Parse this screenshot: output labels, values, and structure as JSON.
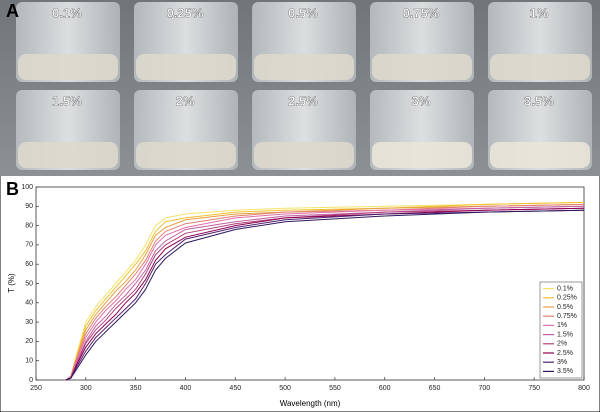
{
  "panel_a": {
    "label": "A",
    "samples": [
      "0.1%",
      "0.25%",
      "0.5%",
      "0.75%",
      "1%",
      "1.5%",
      "2%",
      "2.5%",
      "3%",
      "3.5%"
    ]
  },
  "chart_data": {
    "type": "line",
    "panel_label": "B",
    "xlabel": "Wavelength (nm)",
    "ylabel": "T (%)",
    "x": [
      280,
      285,
      290,
      300,
      310,
      320,
      330,
      340,
      350,
      360,
      370,
      380,
      400,
      450,
      500,
      600,
      700,
      800
    ],
    "xlim": [
      250,
      800
    ],
    "xticks": [
      250,
      300,
      350,
      400,
      450,
      500,
      550,
      600,
      650,
      700,
      750,
      800
    ],
    "ylim": [
      0,
      100
    ],
    "yticks": [
      0,
      10,
      20,
      30,
      40,
      50,
      60,
      70,
      80,
      90,
      100
    ],
    "grid": false,
    "legend": "lower right",
    "series": [
      {
        "name": "0.1%",
        "color": "#f3e36a",
        "values": [
          0,
          2,
          12,
          30,
          38,
          44,
          50,
          56,
          62,
          70,
          80,
          84,
          86,
          88,
          89,
          90,
          91,
          92
        ]
      },
      {
        "name": "0.25%",
        "color": "#f0c030",
        "values": [
          0,
          2,
          11,
          28,
          36,
          42,
          48,
          54,
          60,
          67,
          77,
          82,
          84,
          87,
          88,
          89,
          91,
          92
        ]
      },
      {
        "name": "0.5%",
        "color": "#e8a040",
        "values": [
          0,
          2,
          10,
          26,
          34,
          40,
          46,
          51,
          57,
          65,
          75,
          79,
          83,
          86,
          87,
          89,
          90,
          91
        ]
      },
      {
        "name": "0.75%",
        "color": "#e08070",
        "values": [
          0,
          2,
          10,
          24,
          32,
          38,
          43,
          49,
          55,
          62,
          72,
          77,
          81,
          85,
          87,
          88,
          90,
          91
        ]
      },
      {
        "name": "1%",
        "color": "#e070a8",
        "values": [
          0,
          2,
          9,
          22,
          30,
          36,
          41,
          47,
          52,
          60,
          70,
          75,
          79,
          84,
          86,
          88,
          89,
          90
        ]
      },
      {
        "name": "1.5%",
        "color": "#c060a0",
        "values": [
          0,
          1,
          8,
          20,
          28,
          33,
          39,
          44,
          50,
          57,
          67,
          72,
          78,
          82,
          85,
          87,
          89,
          90
        ]
      },
      {
        "name": "2%",
        "color": "#b0407a",
        "values": [
          0,
          1,
          7,
          19,
          26,
          31,
          37,
          42,
          47,
          55,
          65,
          70,
          76,
          81,
          84,
          87,
          88,
          89
        ]
      },
      {
        "name": "2.5%",
        "color": "#900050",
        "values": [
          0,
          1,
          7,
          17,
          24,
          29,
          34,
          40,
          45,
          52,
          62,
          68,
          74,
          80,
          84,
          86,
          88,
          89
        ]
      },
      {
        "name": "3%",
        "color": "#502070",
        "values": [
          0,
          1,
          6,
          15,
          22,
          27,
          32,
          37,
          42,
          50,
          60,
          65,
          73,
          79,
          83,
          86,
          87,
          88
        ]
      },
      {
        "name": "3.5%",
        "color": "#301860",
        "values": [
          0,
          1,
          5,
          13,
          20,
          25,
          30,
          35,
          40,
          47,
          57,
          63,
          71,
          78,
          82,
          85,
          87,
          88
        ]
      }
    ]
  }
}
